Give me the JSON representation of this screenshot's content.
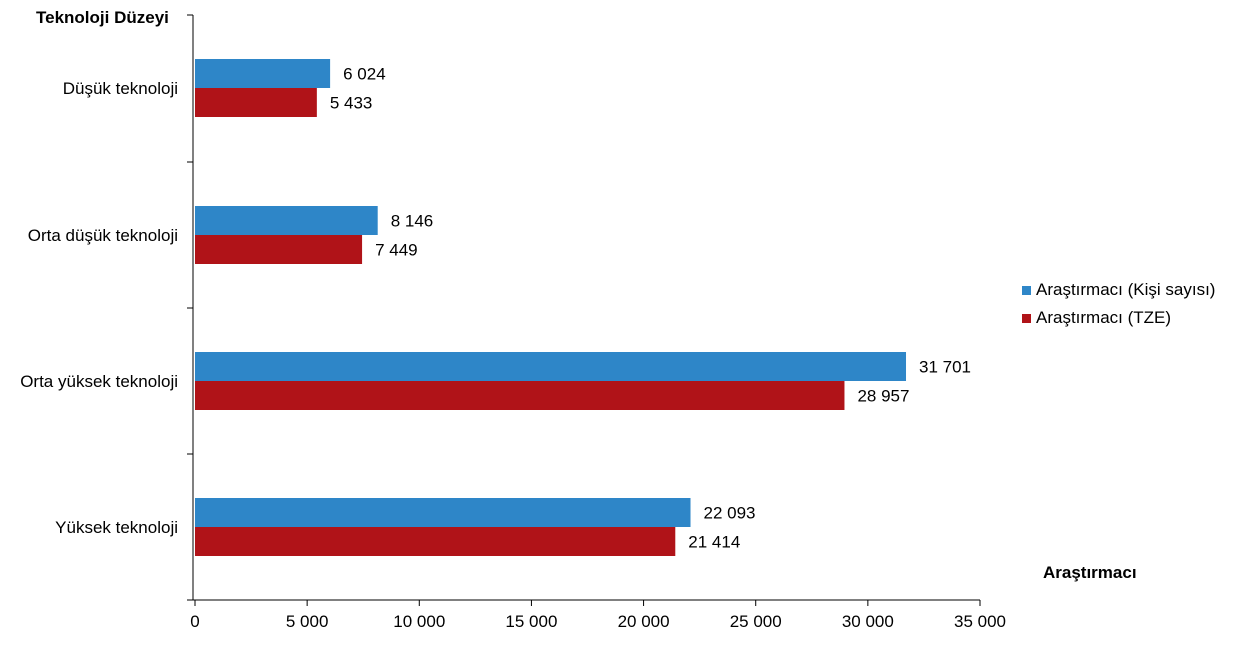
{
  "chart_data": {
    "type": "bar",
    "orientation": "horizontal",
    "ylabel": "Teknoloji Düzeyi",
    "xlabel": "Araştırmacı",
    "categories": [
      "Düşük teknoloji",
      "Orta düşük teknoloji",
      "Orta yüksek teknoloji",
      "Yüksek teknoloji"
    ],
    "series": [
      {
        "name": "Araştırmacı (Kişi sayısı)",
        "color": "#2E86C8",
        "values": [
          6024,
          8146,
          31701,
          22093
        ],
        "labels": [
          "6 024",
          "8 146",
          "31 701",
          "22 093"
        ]
      },
      {
        "name": "Araştırmacı (TZE)",
        "color": "#B01318",
        "values": [
          5433,
          7449,
          28957,
          21414
        ],
        "labels": [
          "5 433",
          "7 449",
          "28 957",
          "21 414"
        ]
      }
    ],
    "xlim": [
      0,
      35000
    ],
    "xticks": [
      0,
      5000,
      10000,
      15000,
      20000,
      25000,
      30000,
      35000
    ],
    "xtick_labels": [
      "0",
      "5 000",
      "10 000",
      "15 000",
      "20 000",
      "25 000",
      "30 000",
      "35 000"
    ],
    "grid": false,
    "legend_position": "right"
  }
}
